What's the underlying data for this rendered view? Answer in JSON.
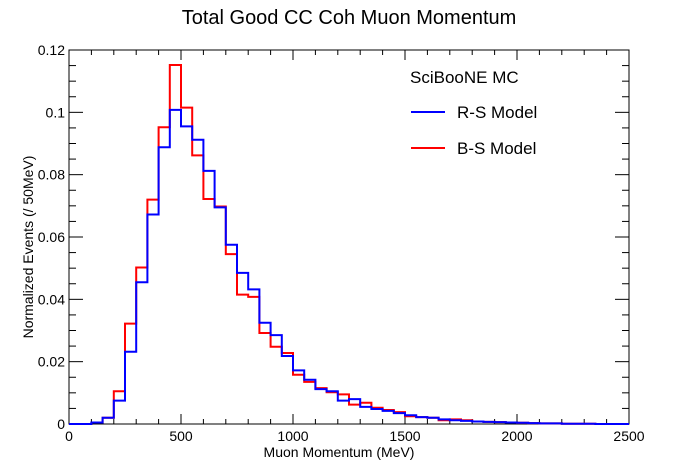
{
  "chart_data": {
    "type": "step-histogram",
    "title": "Total Good CC Coh Muon Momentum",
    "xlabel": "Muon Momentum (MeV)",
    "ylabel": "Normalized Events (/ 50MeV)",
    "xlim": [
      0,
      2500
    ],
    "ylim": [
      0,
      0.12
    ],
    "xticks": [
      0,
      500,
      1000,
      1500,
      2000,
      2500
    ],
    "xtick_labels": [
      "0",
      "500",
      "1000",
      "1500",
      "2000",
      "2500"
    ],
    "yticks": [
      0,
      0.02,
      0.04,
      0.06,
      0.08,
      0.1,
      0.12
    ],
    "ytick_labels": [
      "0",
      "0.02",
      "0.04",
      "0.06",
      "0.08",
      "0.1",
      "0.12"
    ],
    "bin_width": 50,
    "x": [
      0,
      50,
      100,
      150,
      200,
      250,
      300,
      350,
      400,
      450,
      500,
      550,
      600,
      650,
      700,
      750,
      800,
      850,
      900,
      950,
      1000,
      1050,
      1100,
      1150,
      1200,
      1250,
      1300,
      1350,
      1400,
      1450,
      1500,
      1550,
      1600,
      1650,
      1700,
      1750,
      1800,
      1850,
      1900,
      1950,
      2000,
      2050,
      2100,
      2150,
      2200,
      2250,
      2300,
      2350,
      2400,
      2450
    ],
    "legend_header": "SciBooNE MC",
    "legend_position": "top-right",
    "series": [
      {
        "name": "R-S Model",
        "color": "#0000ff",
        "values": [
          0,
          0,
          0.0005,
          0.002,
          0.0075,
          0.0232,
          0.0455,
          0.0672,
          0.0888,
          0.1008,
          0.0955,
          0.0912,
          0.0812,
          0.0695,
          0.0575,
          0.0485,
          0.0432,
          0.0325,
          0.0285,
          0.0218,
          0.0172,
          0.0142,
          0.0112,
          0.0105,
          0.0075,
          0.008,
          0.0055,
          0.0048,
          0.0042,
          0.0035,
          0.0028,
          0.0022,
          0.002,
          0.0015,
          0.0012,
          0.001,
          0.0008,
          0.0007,
          0.0006,
          0.0005,
          0.0004,
          0.0003,
          0.0002,
          0.0002,
          0.0001,
          0.0001,
          0.0001,
          0,
          0,
          0
        ]
      },
      {
        "name": "B-S Model",
        "color": "#ff0000",
        "values": [
          0,
          0,
          0.0005,
          0.002,
          0.0105,
          0.0322,
          0.0502,
          0.072,
          0.0952,
          0.1152,
          0.1015,
          0.0862,
          0.0722,
          0.0698,
          0.0545,
          0.0415,
          0.0408,
          0.0292,
          0.0248,
          0.0228,
          0.0158,
          0.0135,
          0.0115,
          0.0102,
          0.0095,
          0.0062,
          0.0068,
          0.0052,
          0.0045,
          0.0038,
          0.0025,
          0.0022,
          0.002,
          0.0012,
          0.0015,
          0.0012,
          0.0008,
          0.0007,
          0.0006,
          0.0005,
          0.0004,
          0.0003,
          0.0002,
          0.0002,
          0.0001,
          0.0001,
          0.0001,
          0,
          0,
          0
        ]
      }
    ]
  }
}
